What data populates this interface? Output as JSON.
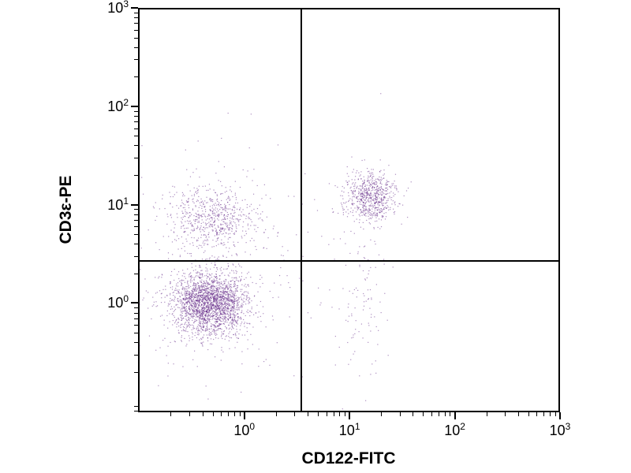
{
  "figure": {
    "background": "#ffffff",
    "axis_color": "#000000"
  },
  "chart_data": {
    "type": "scatter",
    "title": "",
    "xlabel": "CD122-FITC",
    "ylabel": "CD3ε-PE",
    "x_scale": "log",
    "y_scale": "log",
    "x_range_exp": [
      -1.01,
      3
    ],
    "y_range_exp": [
      -1.11,
      3
    ],
    "x_tick_exponents": [
      0,
      1,
      2,
      3
    ],
    "y_tick_exponents": [
      0,
      1,
      2,
      3
    ],
    "grid": false,
    "legend": false,
    "dot_color": "#5c1d82",
    "quadrant_gate": {
      "x_value": 3.5,
      "y_value": 2.7
    },
    "populations": [
      {
        "label": "lower-left-cluster (CD122- CD3e-)",
        "n": 2300,
        "center_exp": [
          -0.33,
          0.0
        ],
        "center_value": [
          0.47,
          1.0
        ],
        "sigma_exp": [
          0.18,
          0.16
        ]
      },
      {
        "label": "upper-left-cluster (CD122- CD3e+)",
        "n": 620,
        "center_exp": [
          -0.29,
          0.87
        ],
        "center_value": [
          0.51,
          7.4
        ],
        "sigma_exp": [
          0.21,
          0.17
        ]
      },
      {
        "label": "upper-right-cluster (CD122+ CD3e+)",
        "n": 680,
        "center_exp": [
          1.19,
          1.08
        ],
        "center_value": [
          15.5,
          12.0
        ],
        "sigma_exp": [
          0.12,
          0.13
        ]
      },
      {
        "label": "tail-below-upper-right-cluster",
        "n": 120,
        "center_exp": [
          1.12,
          0.15
        ],
        "center_value": [
          13.2,
          1.4
        ],
        "sigma_exp": [
          0.13,
          0.55
        ]
      },
      {
        "label": "sparse-background",
        "n": 280,
        "center_exp": [
          -0.3,
          0.3
        ],
        "center_value": [
          0.5,
          2.0
        ],
        "sigma_exp": [
          0.5,
          0.6
        ]
      }
    ]
  }
}
